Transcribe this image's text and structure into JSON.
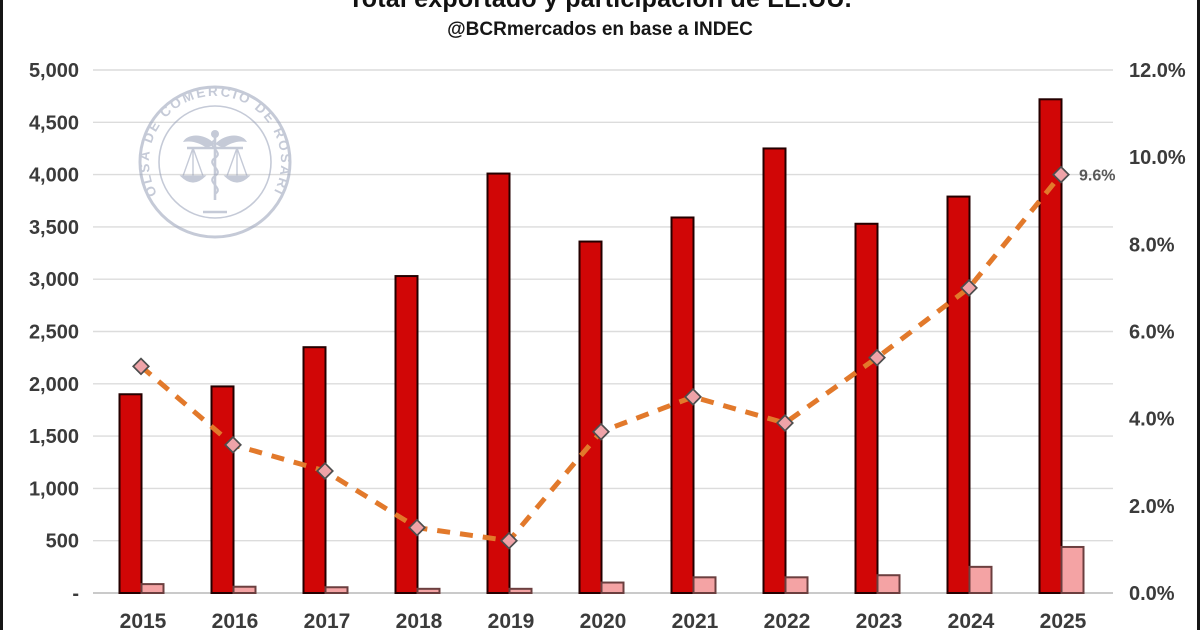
{
  "header": {
    "title": "Total exportado y participación de EE.UU.",
    "subtitle": "@BCRmercados en base a INDEC"
  },
  "watermark": {
    "text": "BOLSA DE COMERCIO DE ROSARIO",
    "color": "#96a0b8"
  },
  "chart_data": {
    "type": "combo",
    "title": "Total exportado y participación de EE.UU.",
    "subtitle": "@BCRmercados en base a INDEC",
    "categories": [
      "2015",
      "2016",
      "2017",
      "2018",
      "2019",
      "2020",
      "2021",
      "2022",
      "2023",
      "2024",
      "2025"
    ],
    "series": [
      {
        "name": "total-exportado",
        "type": "bar",
        "axis": "left",
        "fill": "#d10606",
        "stroke": "#240000",
        "values": [
          1900,
          1975,
          2350,
          3030,
          4010,
          3360,
          3590,
          4250,
          3530,
          3790,
          4720
        ]
      },
      {
        "name": "exportado-eeuu",
        "type": "bar",
        "axis": "left",
        "fill": "#f4a3a4",
        "stroke": "#6b3f3f",
        "values": [
          85,
          60,
          55,
          40,
          40,
          100,
          150,
          150,
          170,
          250,
          440
        ]
      },
      {
        "name": "participacion-eeuu",
        "type": "line",
        "axis": "right",
        "stroke": "#e2792b",
        "marker_fill": "#efa3a8",
        "marker_stroke": "#4d4d4d",
        "values": [
          5.2,
          3.4,
          2.8,
          1.5,
          1.2,
          3.7,
          4.5,
          3.9,
          5.4,
          7.0,
          9.6
        ]
      }
    ],
    "left_axis": {
      "max": 5000,
      "ticks": [
        {
          "value": 5000,
          "label": "5,000"
        },
        {
          "value": 4500,
          "label": "4,500"
        },
        {
          "value": 4000,
          "label": "4,000"
        },
        {
          "value": 3500,
          "label": "3,500"
        },
        {
          "value": 3000,
          "label": "3,000"
        },
        {
          "value": 2500,
          "label": "2,500"
        },
        {
          "value": 2000,
          "label": "2,000"
        },
        {
          "value": 1500,
          "label": "1,500"
        },
        {
          "value": 1000,
          "label": "1,000"
        },
        {
          "value": 500,
          "label": "500"
        },
        {
          "value": 0,
          "label": "-"
        }
      ]
    },
    "right_axis": {
      "max": 12,
      "ticks": [
        {
          "value": 12,
          "label": "12.0%"
        },
        {
          "value": 10,
          "label": "10.0%"
        },
        {
          "value": 8,
          "label": "8.0%"
        },
        {
          "value": 6,
          "label": "6.0%"
        },
        {
          "value": 4,
          "label": "4.0%"
        },
        {
          "value": 2,
          "label": "2.0%"
        },
        {
          "value": 0,
          "label": "0.0%"
        }
      ]
    },
    "annotation": {
      "text": "9.6%",
      "series_index": 2,
      "point_index": 10,
      "color": "#595959"
    },
    "grid_color": "#dcdcdc",
    "baseline_color": "#c2c2c2",
    "axis_text_color": "#3b3b3b",
    "legend": "none",
    "grid": "on"
  }
}
